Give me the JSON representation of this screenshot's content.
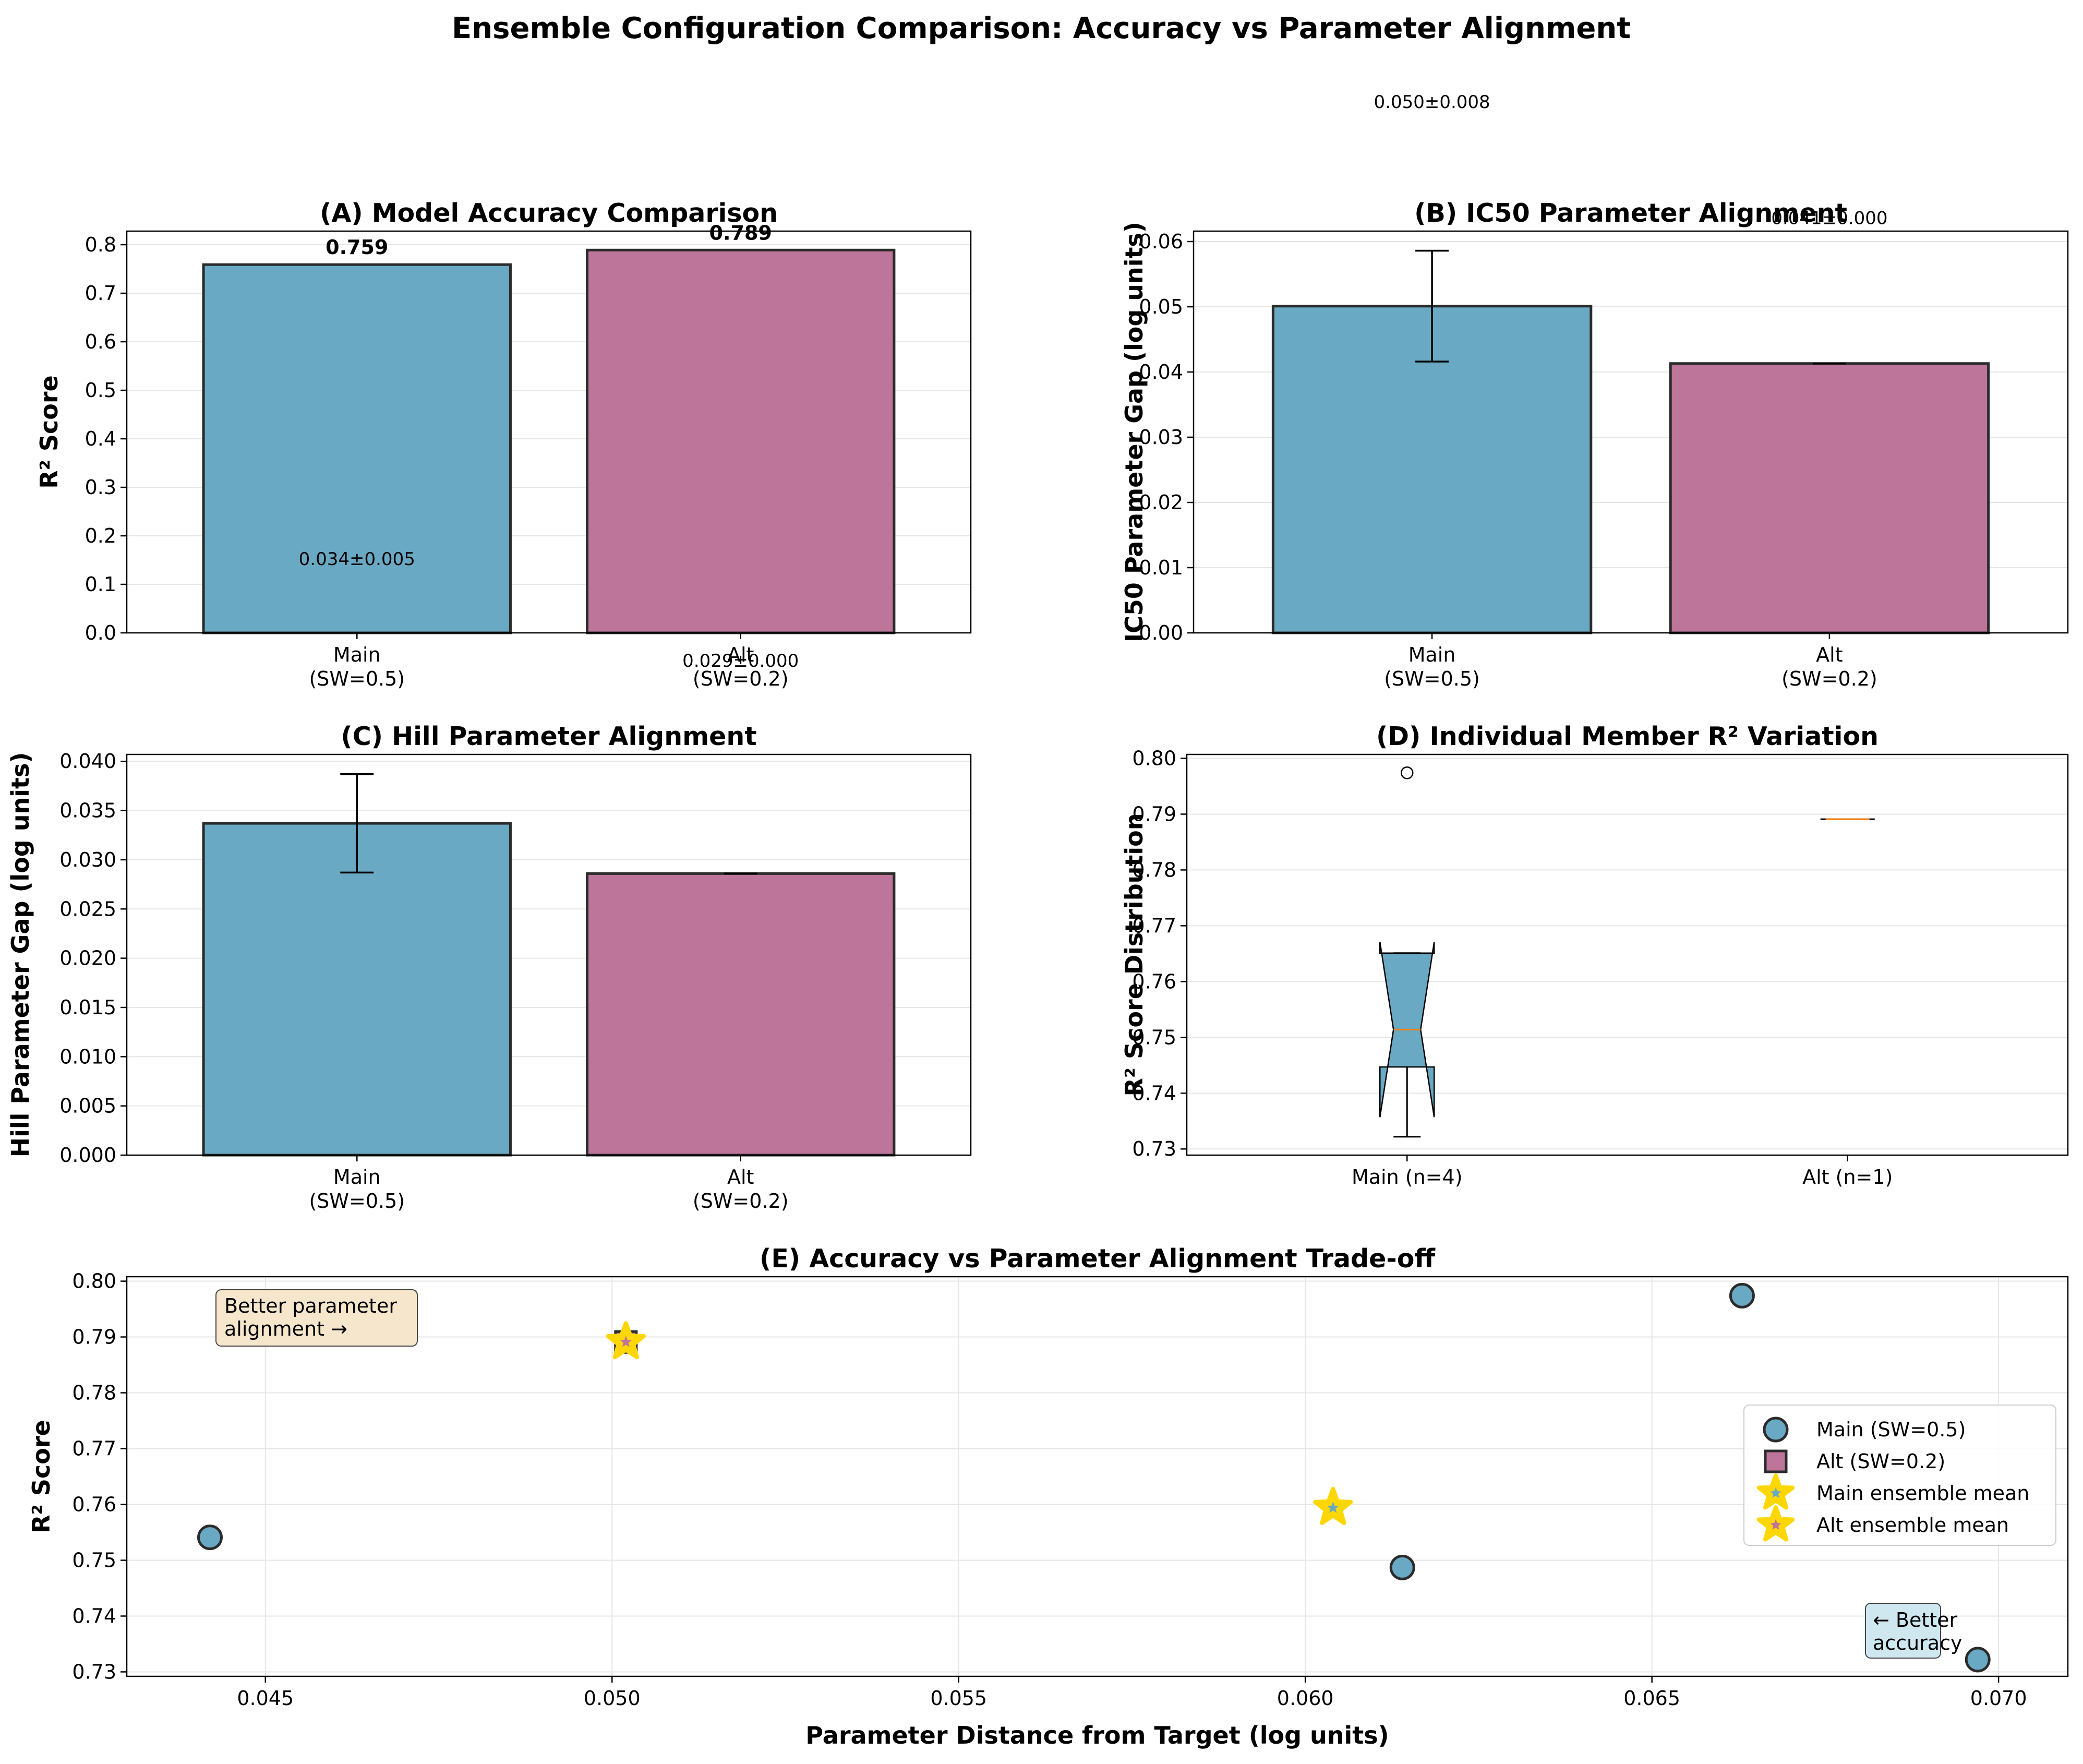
{
  "figure": {
    "title": "Ensemble Configuration Comparison: Accuracy vs Parameter Alignment"
  },
  "colors": {
    "main": "#6aa9c3",
    "alt": "#bd7599",
    "edge": "#2b2b2b",
    "grid": "#e6e6e6",
    "star": "#ffd700",
    "median": "#ff7f0e",
    "box_better_param": "#f5e6cc",
    "box_better_acc": "#cfe8f0"
  },
  "chart_data": [
    {
      "id": "A",
      "type": "bar",
      "title": "(A) Model Accuracy Comparison",
      "ylabel": "R² Score",
      "xlabel": "",
      "categories": [
        "Main\n(SW=0.5)",
        "Alt\n(SW=0.2)"
      ],
      "values": [
        0.759,
        0.789
      ],
      "value_labels": [
        "0.759",
        "0.789"
      ],
      "ylim": [
        0,
        0.828
      ],
      "yticks": [
        0.0,
        0.1,
        0.2,
        0.3,
        0.4,
        0.5,
        0.6,
        0.7,
        0.8
      ],
      "ytick_labels": [
        "0.0",
        "0.1",
        "0.2",
        "0.3",
        "0.4",
        "0.5",
        "0.6",
        "0.7",
        "0.8"
      ],
      "stray_annotations": [
        {
          "text": "0.034±0.005",
          "x": 0,
          "y": 0.14
        },
        {
          "text": "0.029±0.000",
          "x": 1,
          "y": -0.07
        }
      ],
      "grid": true
    },
    {
      "id": "B",
      "type": "bar",
      "title": "(B) IC50 Parameter Alignment",
      "ylabel": "IC50 Parameter Gap (log units)",
      "xlabel": "",
      "categories": [
        "Main\n(SW=0.5)",
        "Alt\n(SW=0.2)"
      ],
      "values": [
        0.0501,
        0.0413
      ],
      "errors": [
        0.0085,
        0.0
      ],
      "ylim": [
        0,
        0.0616
      ],
      "yticks": [
        0.0,
        0.01,
        0.02,
        0.03,
        0.04,
        0.05,
        0.06
      ],
      "ytick_labels": [
        "0.00",
        "0.01",
        "0.02",
        "0.03",
        "0.04",
        "0.05",
        "0.06"
      ],
      "stray_annotations": [
        {
          "text": "0.050±0.008",
          "x": 0,
          "y": 0.0805
        },
        {
          "text": "0.041±0.000",
          "x": 1,
          "y": 0.0627
        }
      ],
      "grid": true
    },
    {
      "id": "C",
      "type": "bar",
      "title": "(C) Hill Parameter Alignment",
      "ylabel": "Hill Parameter Gap (log units)",
      "xlabel": "",
      "categories": [
        "Main\n(SW=0.5)",
        "Alt\n(SW=0.2)"
      ],
      "values": [
        0.0337,
        0.0286
      ],
      "errors": [
        0.005,
        0.0
      ],
      "ylim": [
        0,
        0.0407
      ],
      "yticks": [
        0.0,
        0.005,
        0.01,
        0.015,
        0.02,
        0.025,
        0.03,
        0.035,
        0.04
      ],
      "ytick_labels": [
        "0.000",
        "0.005",
        "0.010",
        "0.015",
        "0.020",
        "0.025",
        "0.030",
        "0.035",
        "0.040"
      ],
      "grid": true
    },
    {
      "id": "D",
      "type": "box",
      "title": "(D) Individual Member R² Variation",
      "ylabel": "R² Score Distribution",
      "xlabel": "",
      "categories": [
        "Main (n=4)",
        "Alt (n=1)"
      ],
      "boxes": [
        {
          "q1": 0.7447,
          "median": 0.7514,
          "q3": 0.7651,
          "whisker_low": 0.7322,
          "whisker_high": 0.7651,
          "notch_low": 0.7357,
          "notch_high": 0.7671,
          "outliers": [
            0.7974
          ]
        },
        {
          "q1": 0.7891,
          "median": 0.7891,
          "q3": 0.7891,
          "whisker_low": 0.7891,
          "whisker_high": 0.7891,
          "notch_low": 0.7891,
          "notch_high": 0.7891,
          "outliers": []
        }
      ],
      "ylim": [
        0.7289,
        0.8007
      ],
      "yticks": [
        0.73,
        0.74,
        0.75,
        0.76,
        0.77,
        0.78,
        0.79,
        0.8
      ],
      "ytick_labels": [
        "0.73",
        "0.74",
        "0.75",
        "0.76",
        "0.77",
        "0.78",
        "0.79",
        "0.80"
      ],
      "grid": true
    },
    {
      "id": "E",
      "type": "scatter",
      "title": "(E) Accuracy vs Parameter Alignment Trade-off",
      "xlabel": "Parameter Distance from Target (log units)",
      "ylabel": "R² Score",
      "series": [
        {
          "name": "Main (SW=0.5)",
          "marker": "circle",
          "points": [
            [
              0.0442,
              0.7541
            ],
            [
              0.0614,
              0.7487
            ],
            [
              0.0663,
              0.7974
            ],
            [
              0.0697,
              0.7322
            ]
          ]
        },
        {
          "name": "Alt (SW=0.2)",
          "marker": "square",
          "points": [
            [
              0.0502,
              0.7891
            ]
          ]
        },
        {
          "name": "Main ensemble mean",
          "marker": "star",
          "points": [
            [
              0.0604,
              0.7594
            ]
          ]
        },
        {
          "name": "Alt ensemble mean",
          "marker": "star",
          "points": [
            [
              0.0502,
              0.7891
            ]
          ]
        }
      ],
      "xlim": [
        0.043,
        0.071
      ],
      "ylim": [
        0.7292,
        0.8008
      ],
      "xticks": [
        0.045,
        0.05,
        0.055,
        0.06,
        0.065,
        0.07
      ],
      "xtick_labels": [
        "0.045",
        "0.050",
        "0.055",
        "0.060",
        "0.065",
        "0.070"
      ],
      "yticks": [
        0.73,
        0.74,
        0.75,
        0.76,
        0.77,
        0.78,
        0.79,
        0.8
      ],
      "ytick_labels": [
        "0.73",
        "0.74",
        "0.75",
        "0.76",
        "0.77",
        "0.78",
        "0.79",
        "0.80"
      ],
      "annotations": [
        {
          "text": "Better parameter\nalignment →",
          "style": "better_param"
        },
        {
          "text": "← Better\naccuracy",
          "style": "better_acc"
        }
      ],
      "legend_position": "center-right",
      "grid": true
    }
  ]
}
